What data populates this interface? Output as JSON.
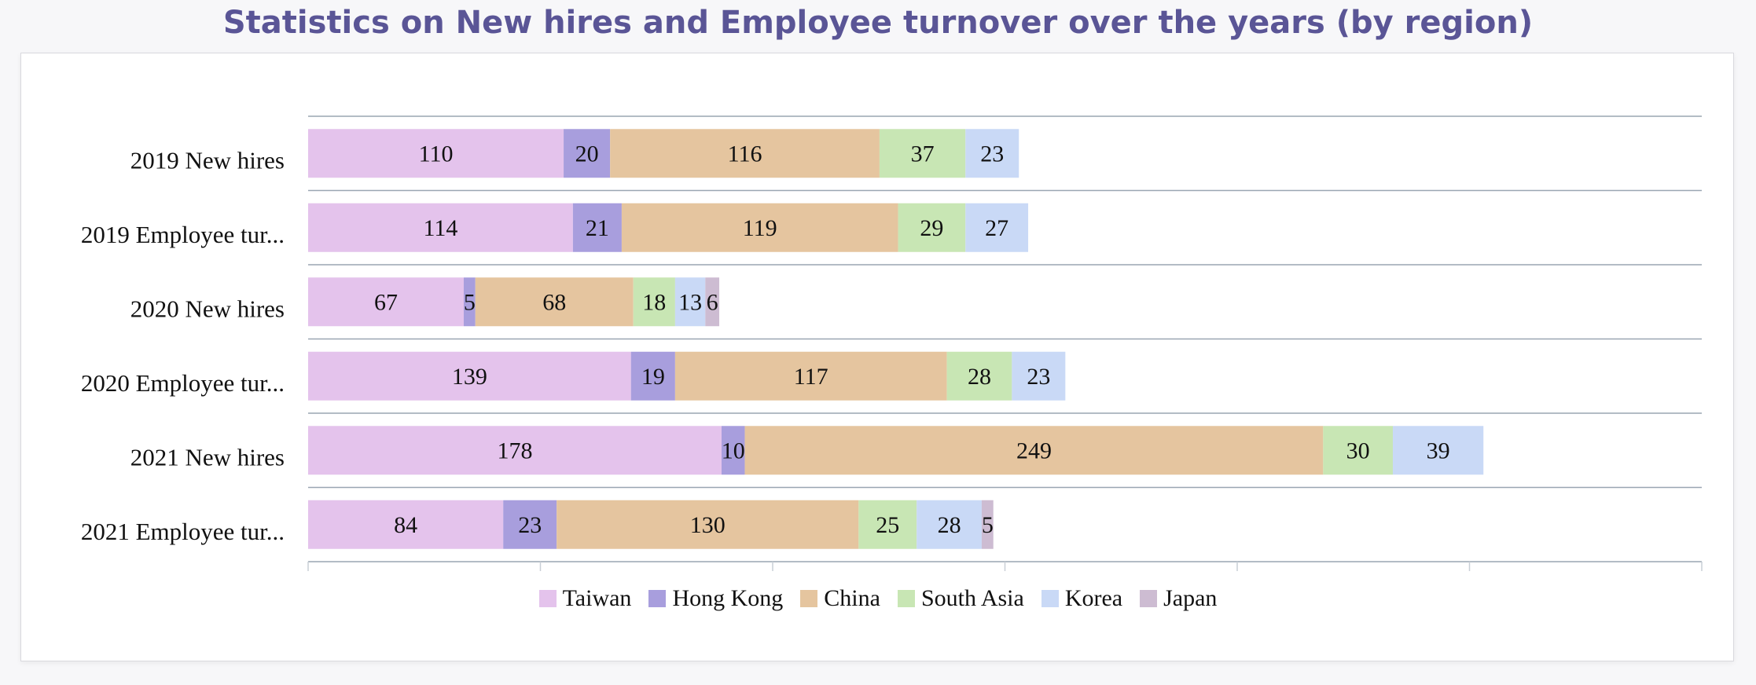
{
  "chart_data": {
    "type": "bar",
    "orientation": "horizontal",
    "stacked": true,
    "title": "Statistics on New hires and Employee turnover over the years (by region)",
    "categories": [
      "2019 New hires",
      "2019 Employee tur...",
      "2020 New hires",
      "2020 Employee tur...",
      "2021 New hires",
      "2021 Employee tur..."
    ],
    "series": [
      {
        "name": "Taiwan",
        "color": "#e4c3ec",
        "values": [
          110,
          114,
          67,
          139,
          178,
          84
        ]
      },
      {
        "name": "Hong Kong",
        "color": "#a89edd",
        "values": [
          20,
          21,
          5,
          19,
          10,
          23
        ]
      },
      {
        "name": "China",
        "color": "#e5c59f",
        "values": [
          116,
          119,
          68,
          117,
          249,
          130
        ]
      },
      {
        "name": "South Asia",
        "color": "#c8e6b4",
        "values": [
          37,
          29,
          18,
          28,
          30,
          25
        ]
      },
      {
        "name": "Korea",
        "color": "#c9d9f6",
        "values": [
          23,
          27,
          13,
          23,
          39,
          28
        ]
      },
      {
        "name": "Japan",
        "color": "#cdbcd2",
        "values": [
          0,
          0,
          6,
          0,
          0,
          5
        ]
      }
    ],
    "xlim": [
      0,
      600
    ],
    "grid": true,
    "legend": "bottom"
  }
}
